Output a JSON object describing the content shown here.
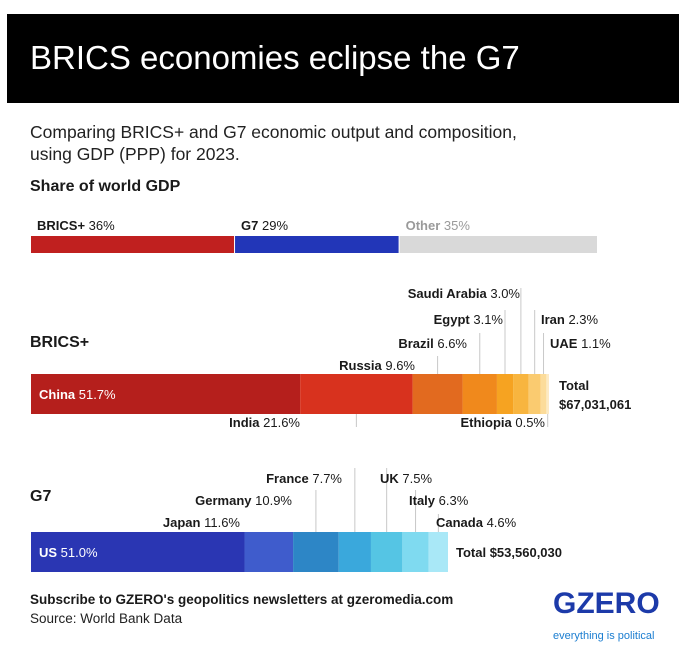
{
  "title": "BRICS economies eclipse the G7",
  "subtitle_line1": "Comparing BRICS+ and G7 economic output and composition,",
  "subtitle_line2": "using GDP (PPP) for 2023.",
  "share_title": "Share of world GDP",
  "brics_title": "BRICS+",
  "g7_title": "G7",
  "footer": {
    "subscribe": "Subscribe to GZERO's geopolitics newsletters at gzeromedia.com",
    "source": "Source: World Bank Data"
  },
  "logo": {
    "text": "GZERO",
    "tagline": "everything is political"
  },
  "colors": {
    "brics_share": "#c0201f",
    "g7_share": "#2236b8",
    "other_share": "#d9d9d9"
  },
  "chart_data": [
    {
      "type": "bar",
      "title": "Share of world GDP",
      "stacked": true,
      "unit": "%",
      "series": [
        {
          "name": "BRICS+",
          "value": 36,
          "label": "BRICS+",
          "value_label": "36%",
          "color": "#c0201f"
        },
        {
          "name": "G7",
          "value": 29,
          "label": "G7",
          "value_label": "29%",
          "color": "#2236b8"
        },
        {
          "name": "Other",
          "value": 35,
          "label": "Other",
          "value_label": "35%",
          "color": "#d9d9d9"
        }
      ]
    },
    {
      "type": "bar",
      "title": "BRICS+",
      "stacked": true,
      "unit": "%",
      "total_label": "Total",
      "total_value": "$67,031,061",
      "segments": [
        {
          "name": "China",
          "value": 51.7,
          "value_label": "51.7%",
          "color": "#b51f1c"
        },
        {
          "name": "India",
          "value": 21.6,
          "value_label": "21.6%",
          "color": "#d8321e"
        },
        {
          "name": "Russia",
          "value": 9.6,
          "value_label": "9.6%",
          "color": "#e26a1f"
        },
        {
          "name": "Brazil",
          "value": 6.6,
          "value_label": "6.6%",
          "color": "#f0891c"
        },
        {
          "name": "Egypt",
          "value": 3.1,
          "value_label": "3.1%",
          "color": "#f6a321"
        },
        {
          "name": "Saudi Arabia",
          "value": 3.0,
          "value_label": "3.0%",
          "color": "#f8b53f"
        },
        {
          "name": "Iran",
          "value": 2.3,
          "value_label": "2.3%",
          "color": "#facb70"
        },
        {
          "name": "UAE",
          "value": 1.1,
          "value_label": "1.1%",
          "color": "#fcdc9a"
        },
        {
          "name": "Ethiopia",
          "value": 0.5,
          "value_label": "0.5%",
          "color": "#fdeac4"
        }
      ]
    },
    {
      "type": "bar",
      "title": "G7",
      "stacked": true,
      "unit": "%",
      "total_label": "Total",
      "total_value": "$53,560,030",
      "segments": [
        {
          "name": "US",
          "value": 51.0,
          "value_label": "51.0%",
          "color": "#2a36b3"
        },
        {
          "name": "Japan",
          "value": 11.6,
          "value_label": "11.6%",
          "color": "#3f5ccc"
        },
        {
          "name": "Germany",
          "value": 10.9,
          "value_label": "10.9%",
          "color": "#2d86c6"
        },
        {
          "name": "France",
          "value": 7.7,
          "value_label": "7.7%",
          "color": "#3aa8dc"
        },
        {
          "name": "UK",
          "value": 7.5,
          "value_label": "7.5%",
          "color": "#55c5e4"
        },
        {
          "name": "Italy",
          "value": 6.3,
          "value_label": "6.3%",
          "color": "#7fdaf0"
        },
        {
          "name": "Canada",
          "value": 4.6,
          "value_label": "4.6%",
          "color": "#a9e8f7"
        }
      ]
    }
  ]
}
